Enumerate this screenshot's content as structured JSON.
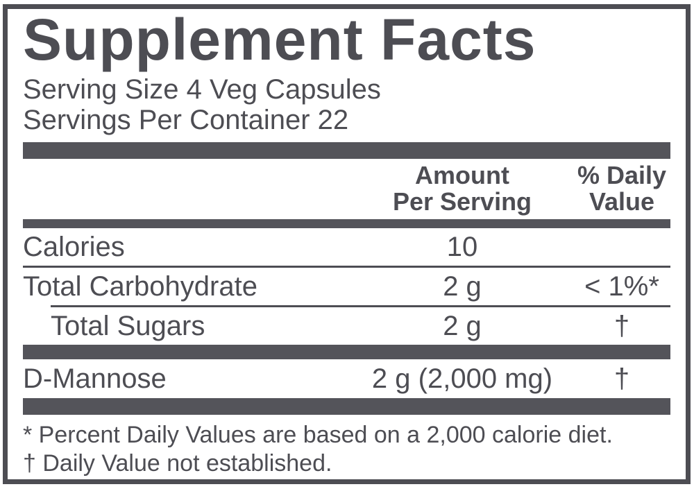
{
  "colors": {
    "ink": "#4d4d53",
    "bar": "#54545a",
    "background": "#ffffff"
  },
  "title": "Supplement Facts",
  "serving_info": {
    "serving_size": "Serving Size 4 Veg Capsules",
    "servings_per_container": "Servings Per Container 22"
  },
  "column_headers": {
    "amount_line1": "Amount",
    "amount_line2": "Per Serving",
    "dv_line1": "% Daily",
    "dv_line2": "Value"
  },
  "nutrient_rows": [
    {
      "name": "Calories",
      "amount": "10",
      "dv": ""
    },
    {
      "name": "Total Carbohydrate",
      "amount": "2 g",
      "dv": "< 1%*"
    },
    {
      "name": "Total Sugars",
      "amount": "2 g",
      "dv": "†"
    }
  ],
  "ingredient_rows": [
    {
      "name": "D-Mannose",
      "amount": "2 g (2,000 mg)",
      "dv": "†"
    }
  ],
  "footnotes": [
    "* Percent Daily Values are based on a 2,000 calorie diet.",
    "† Daily Value not established."
  ]
}
